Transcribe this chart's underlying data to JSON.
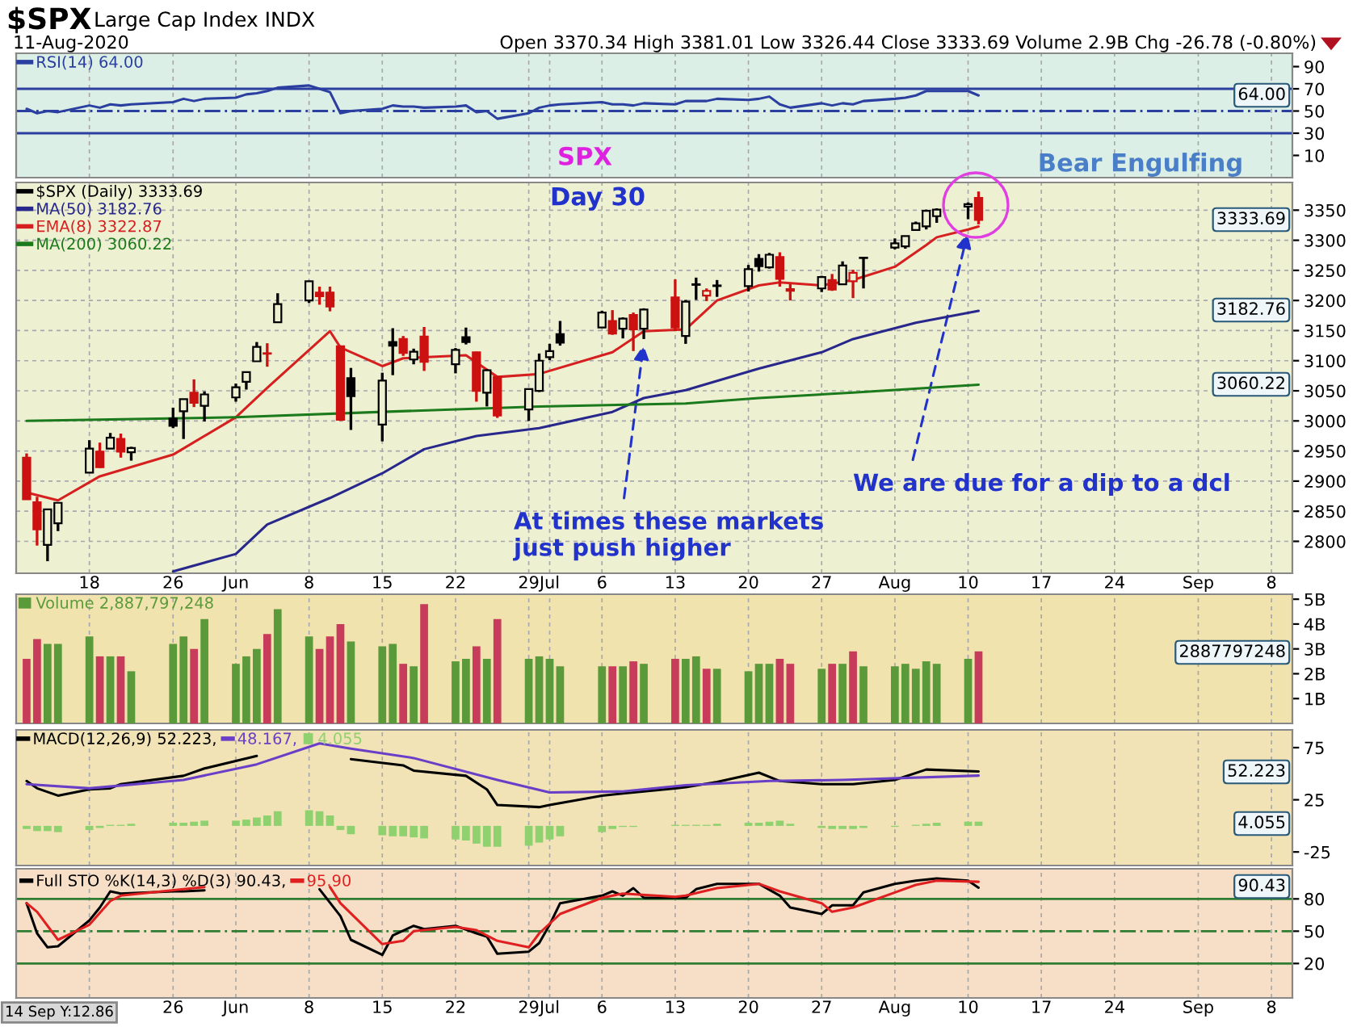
{
  "chart_data": [
    {
      "type": "line",
      "title": "$SPX",
      "subtitle": "Large Cap Index INDX",
      "annotations": [
        "11-Aug-2020",
        "Open 3370.34 High 3381.01 Low 3326.44 Close 3333.69 Volume 2.9B Chg -26.78 (-0.80%)",
        "64.00"
      ],
      "x": [
        "2020-05-12",
        "2020-05-13",
        "2020-05-14",
        "2020-05-15",
        "2020-05-18",
        "2020-05-19",
        "2020-05-20",
        "2020-05-21",
        "2020-05-22",
        "2020-05-26",
        "2020-05-27",
        "2020-05-28",
        "2020-05-29",
        "2020-06-01",
        "2020-06-02",
        "2020-06-03",
        "2020-06-04",
        "2020-06-05",
        "2020-06-08",
        "2020-06-09",
        "2020-06-10",
        "2020-06-11",
        "2020-06-12",
        "2020-06-15",
        "2020-06-16",
        "2020-06-17",
        "2020-06-18",
        "2020-06-19",
        "2020-06-22",
        "2020-06-23",
        "2020-06-24",
        "2020-06-25",
        "2020-06-26",
        "2020-06-29",
        "2020-06-30",
        "2020-07-01",
        "2020-07-02",
        "2020-07-06",
        "2020-07-07",
        "2020-07-08",
        "2020-07-09",
        "2020-07-10",
        "2020-07-13",
        "2020-07-14",
        "2020-07-15",
        "2020-07-16",
        "2020-07-17",
        "2020-07-20",
        "2020-07-21",
        "2020-07-22",
        "2020-07-23",
        "2020-07-24",
        "2020-07-27",
        "2020-07-28",
        "2020-07-29",
        "2020-07-30",
        "2020-07-31",
        "2020-08-03",
        "2020-08-04",
        "2020-08-05",
        "2020-08-06",
        "2020-08-07",
        "2020-08-10",
        "2020-08-11"
      ],
      "series": [
        {
          "name": "RSI(14) 64.00",
          "color": "#2a3fa0",
          "values": [
            52,
            48,
            50,
            49,
            55,
            53,
            56,
            55,
            56,
            58,
            61,
            59,
            61,
            62,
            65,
            66,
            68,
            71,
            73,
            70,
            67,
            48,
            50,
            52,
            55,
            54,
            54,
            53,
            54,
            55,
            49,
            50,
            43,
            48,
            53,
            55,
            56,
            58,
            56,
            56,
            55,
            57,
            56,
            59,
            59,
            59,
            61,
            60,
            61,
            63,
            56,
            53,
            57,
            55,
            57,
            56,
            59,
            61,
            62,
            64,
            68,
            68,
            68,
            64
          ]
        }
      ],
      "xlim": [
        "2020-05-11",
        "2020-09-10"
      ],
      "xticks": [
        {
          "value": "2020-05-18",
          "label": null
        },
        {
          "value": "2020-05-26",
          "label": null
        },
        {
          "value": "2020-06-01",
          "label": null
        },
        {
          "value": "2020-06-08",
          "label": null
        },
        {
          "value": "2020-06-15",
          "label": null
        },
        {
          "value": "2020-06-22",
          "label": null
        },
        {
          "value": "2020-06-29",
          "label": null
        },
        {
          "value": "2020-07-01",
          "label": null
        },
        {
          "value": "2020-07-06",
          "label": null
        },
        {
          "value": "2020-07-13",
          "label": null
        },
        {
          "value": "2020-07-20",
          "label": null
        },
        {
          "value": "2020-07-27",
          "label": null
        },
        {
          "value": "2020-08-03",
          "label": null
        },
        {
          "value": "2020-08-10",
          "label": null
        },
        {
          "value": "2020-08-17",
          "label": null
        },
        {
          "value": "2020-08-24",
          "label": null
        },
        {
          "value": "2020-09-01",
          "label": null
        },
        {
          "value": "2020-09-08",
          "label": null
        }
      ],
      "ylim": [
        -10,
        102
      ],
      "yticks": [
        10,
        30,
        50,
        70,
        90
      ],
      "ref_lines": [
        {
          "axis": "y",
          "value": 70,
          "color": "#2a3fa0"
        },
        {
          "axis": "y",
          "value": 30,
          "color": "#2a3fa0"
        },
        {
          "axis": "y",
          "value": 50,
          "color": "#2a3fa0",
          "line_style": "dashed"
        }
      ],
      "grid": "x",
      "legend": "top left",
      "tick_labels": "y"
    },
    {
      "type": "candlestick",
      "annotations": [
        "SPX",
        "Day 30",
        "Bear Engulfing",
        {
          "text": "At times these markets\njust push higher",
          "x": "2020-07-10",
          "y": 3130
        },
        {
          "text": "We are due for a dip to a dcl",
          "x": "2020-08-10",
          "y": 3315
        },
        "3333.69",
        "3182.76",
        "3060.22"
      ],
      "x": [
        "2020-05-12",
        "2020-05-13",
        "2020-05-14",
        "2020-05-15",
        "2020-05-18",
        "2020-05-19",
        "2020-05-20",
        "2020-05-21",
        "2020-05-22",
        "2020-05-26",
        "2020-05-27",
        "2020-05-28",
        "2020-05-29",
        "2020-06-01",
        "2020-06-02",
        "2020-06-03",
        "2020-06-04",
        "2020-06-05",
        "2020-06-08",
        "2020-06-09",
        "2020-06-10",
        "2020-06-11",
        "2020-06-12",
        "2020-06-15",
        "2020-06-16",
        "2020-06-17",
        "2020-06-18",
        "2020-06-19",
        "2020-06-22",
        "2020-06-23",
        "2020-06-24",
        "2020-06-25",
        "2020-06-26",
        "2020-06-29",
        "2020-06-30",
        "2020-07-01",
        "2020-07-02",
        "2020-07-06",
        "2020-07-07",
        "2020-07-08",
        "2020-07-09",
        "2020-07-10",
        "2020-07-13",
        "2020-07-14",
        "2020-07-15",
        "2020-07-16",
        "2020-07-17",
        "2020-07-20",
        "2020-07-21",
        "2020-07-22",
        "2020-07-23",
        "2020-07-24",
        "2020-07-27",
        "2020-07-28",
        "2020-07-29",
        "2020-07-30",
        "2020-07-31",
        "2020-08-03",
        "2020-08-04",
        "2020-08-05",
        "2020-08-06",
        "2020-08-07",
        "2020-08-10",
        "2020-08-11"
      ],
      "series": [
        {
          "name": "$SPX (Daily) 3333.69",
          "color": "#000000",
          "colors": [
            "#cc1111",
            "#cc1111",
            "#000000",
            "#000000",
            "#000000",
            "#cc1111",
            "#000000",
            "#cc1111",
            "#000000",
            "#000000",
            "#000000",
            "#cc1111",
            "#000000",
            "#000000",
            "#000000",
            "#000000",
            "#cc1111",
            "#000000",
            "#000000",
            "#cc1111",
            "#cc1111",
            "#cc1111",
            "#000000",
            "#000000",
            "#000000",
            "#cc1111",
            "#000000",
            "#cc1111",
            "#000000",
            "#000000",
            "#cc1111",
            "#000000",
            "#cc1111",
            "#000000",
            "#000000",
            "#000000",
            "#000000",
            "#000000",
            "#cc1111",
            "#000000",
            "#cc1111",
            "#000000",
            "#cc1111",
            "#000000",
            "#000000",
            "#cc1111",
            "#000000",
            "#000000",
            "#000000",
            "#000000",
            "#cc1111",
            "#cc1111",
            "#000000",
            "#cc1111",
            "#000000",
            "#cc1111",
            "#000000",
            "#000000",
            "#000000",
            "#000000",
            "#000000",
            "#000000",
            "#000000",
            "#cc1111"
          ],
          "ohlc": [
            [
              2939,
              2946,
              2870,
              2870
            ],
            [
              2865,
              2874,
              2793,
              2820
            ],
            [
              2794,
              2853,
              2767,
              2853
            ],
            [
              2830,
              2865,
              2817,
              2864
            ],
            [
              2914,
              2968,
              2914,
              2954
            ],
            [
              2949,
              2964,
              2922,
              2923
            ],
            [
              2954,
              2980,
              2954,
              2972
            ],
            [
              2970,
              2979,
              2939,
              2949
            ],
            [
              2948,
              2957,
              2934,
              2955
            ],
            [
              3004,
              3022,
              2988,
              2992
            ],
            [
              3016,
              3036,
              2970,
              3036
            ],
            [
              3047,
              3069,
              3023,
              3030
            ],
            [
              3025,
              3049,
              2999,
              3044
            ],
            [
              3039,
              3062,
              3032,
              3056
            ],
            [
              3065,
              3081,
              3052,
              3081
            ],
            [
              3099,
              3131,
              3099,
              3123
            ],
            [
              3111.6,
              3129,
              3090,
              3112.4
            ],
            [
              3164,
              3212,
              3164,
              3194
            ],
            [
              3200,
              3233,
              3196,
              3232
            ],
            [
              3213,
              3223,
              3193,
              3207
            ],
            [
              3213,
              3223,
              3182,
              3190
            ],
            [
              3124,
              3124,
              3000,
              3002
            ],
            [
              3071,
              3088,
              2985,
              3041
            ],
            [
              2994,
              3080,
              2966,
              3067
            ],
            [
              3131,
              3154,
              3076,
              3125
            ],
            [
              3136,
              3141,
              3108,
              3113
            ],
            [
              3102,
              3120,
              3094,
              3115
            ],
            [
              3140,
              3156,
              3083,
              3098
            ],
            [
              3094,
              3121,
              3079,
              3118
            ],
            [
              3139,
              3155,
              3127,
              3131
            ],
            [
              3114,
              3115,
              3032,
              3050
            ],
            [
              3047,
              3086,
              3024,
              3084
            ],
            [
              3073,
              3074,
              3005,
              3009
            ],
            [
              3019,
              3054,
              3000,
              3053
            ],
            [
              3050,
              3112,
              3048,
              3100
            ],
            [
              3106,
              3128,
              3101,
              3116
            ],
            [
              3144,
              3166,
              3125,
              3130
            ],
            [
              3155,
              3183,
              3155,
              3180
            ],
            [
              3166,
              3184,
              3143,
              3145
            ],
            [
              3153,
              3172,
              3137,
              3170
            ],
            [
              3176,
              3180,
              3116,
              3152
            ],
            [
              3153,
              3187,
              3136,
              3185
            ],
            [
              3205,
              3235,
              3149,
              3155
            ],
            [
              3141,
              3201,
              3128,
              3198
            ],
            [
              3226,
              3238,
              3201,
              3227
            ],
            [
              3208,
              3220,
              3199,
              3216
            ],
            [
              3224,
              3234,
              3206,
              3225
            ],
            [
              3224,
              3259,
              3215,
              3252
            ],
            [
              3269,
              3277,
              3248,
              3257
            ],
            [
              3255,
              3279,
              3253,
              3276
            ],
            [
              3272,
              3280,
              3223,
              3236
            ],
            [
              3219,
              3227,
              3200,
              3216
            ],
            [
              3220,
              3241,
              3214,
              3239
            ],
            [
              3234,
              3244,
              3216,
              3218
            ],
            [
              3227,
              3265,
              3227,
              3258
            ],
            [
              3232,
              3251,
              3204,
              3246
            ],
            [
              3270.5,
              3272,
              3220,
              3271.1
            ],
            [
              3288,
              3303,
              3285,
              3295
            ],
            [
              3290,
              3307,
              3286,
              3307
            ],
            [
              3317,
              3331,
              3317,
              3328
            ],
            [
              3323,
              3351,
              3318,
              3349
            ],
            [
              3340,
              3353,
              3329,
              3351
            ],
            [
              3356,
              3363,
              3335,
              3360
            ],
            [
              3370.34,
              3381.01,
              3326.44,
              3333.69
            ]
          ]
        },
        {
          "type": "line",
          "name": "MA(50) 3182.76",
          "color": "#28288c",
          "x": [
            "2020-05-26",
            "2020-06-01",
            "2020-06-04",
            "2020-06-10",
            "2020-06-15",
            "2020-06-19",
            "2020-06-24",
            "2020-06-30",
            "2020-07-07",
            "2020-07-10",
            "2020-07-14",
            "2020-07-21",
            "2020-07-27",
            "2020-07-30",
            "2020-08-05",
            "2020-08-11"
          ],
          "values": [
            2750,
            2779,
            2828,
            2872,
            2913,
            2953,
            2975,
            2988,
            3015,
            3038,
            3051,
            3087,
            3114,
            3136,
            3163,
            3182.76
          ]
        },
        {
          "type": "line",
          "name": "EMA(8) 3322.87",
          "color": "#d62020",
          "x": [
            "2020-05-12",
            "2020-05-15",
            "2020-05-19",
            "2020-05-26",
            "2020-06-01",
            "2020-06-04",
            "2020-06-10",
            "2020-06-11",
            "2020-06-15",
            "2020-06-17",
            "2020-06-23",
            "2020-06-26",
            "2020-06-30",
            "2020-07-07",
            "2020-07-10",
            "2020-07-14",
            "2020-07-17",
            "2020-07-21",
            "2020-07-23",
            "2020-07-27",
            "2020-07-30",
            "2020-08-03",
            "2020-08-06",
            "2020-08-07",
            "2020-08-10",
            "2020-08-11"
          ],
          "values": [
            2881,
            2868,
            2908,
            2944,
            3006,
            3055,
            3149,
            3122,
            3091,
            3104,
            3109,
            3073,
            3078,
            3114,
            3149,
            3152,
            3200,
            3225,
            3230,
            3225,
            3234,
            3256,
            3292,
            3305,
            3318,
            3322.87
          ]
        },
        {
          "type": "line",
          "name": "MA(200) 3060.22",
          "color": "#1b7a1b",
          "x": [
            "2020-05-12",
            "2020-06-01",
            "2020-06-15",
            "2020-06-30",
            "2020-07-14",
            "2020-07-21",
            "2020-07-30",
            "2020-08-11"
          ],
          "values": [
            3000,
            3006,
            3015,
            3024,
            3029,
            3038,
            3047,
            3060.22
          ]
        }
      ],
      "xlim": [
        "2020-05-11",
        "2020-09-10"
      ],
      "xticks": [
        {
          "value": "2020-05-18",
          "label": "18"
        },
        {
          "value": "2020-05-26",
          "label": "26"
        },
        {
          "value": "2020-06-01",
          "label": "Jun"
        },
        {
          "value": "2020-06-08",
          "label": "8"
        },
        {
          "value": "2020-06-15",
          "label": "15"
        },
        {
          "value": "2020-06-22",
          "label": "22"
        },
        {
          "value": "2020-06-29",
          "label": "29"
        },
        {
          "value": "2020-07-01",
          "label": "Jul"
        },
        {
          "value": "2020-07-06",
          "label": "6"
        },
        {
          "value": "2020-07-13",
          "label": "13"
        },
        {
          "value": "2020-07-20",
          "label": "20"
        },
        {
          "value": "2020-07-27",
          "label": "27"
        },
        {
          "value": "2020-08-03",
          "label": "Aug"
        },
        {
          "value": "2020-08-10",
          "label": "10"
        },
        {
          "value": "2020-08-17",
          "label": "17"
        },
        {
          "value": "2020-08-24",
          "label": "24"
        },
        {
          "value": "2020-09-01",
          "label": "Sep"
        },
        {
          "value": "2020-09-08",
          "label": "8"
        }
      ],
      "ylim": [
        2747,
        3396
      ],
      "yticks": [
        2800,
        2850,
        2900,
        2950,
        3000,
        3050,
        3100,
        3150,
        3200,
        3250,
        3300,
        3350
      ],
      "grid": true,
      "legend": "top left"
    },
    {
      "type": "bar",
      "annotations": [
        "2887797248"
      ],
      "x": [
        "2020-05-12",
        "2020-05-13",
        "2020-05-14",
        "2020-05-15",
        "2020-05-18",
        "2020-05-19",
        "2020-05-20",
        "2020-05-21",
        "2020-05-22",
        "2020-05-26",
        "2020-05-27",
        "2020-05-28",
        "2020-05-29",
        "2020-06-01",
        "2020-06-02",
        "2020-06-03",
        "2020-06-04",
        "2020-06-05",
        "2020-06-08",
        "2020-06-09",
        "2020-06-10",
        "2020-06-11",
        "2020-06-12",
        "2020-06-15",
        "2020-06-16",
        "2020-06-17",
        "2020-06-18",
        "2020-06-19",
        "2020-06-22",
        "2020-06-23",
        "2020-06-24",
        "2020-06-25",
        "2020-06-26",
        "2020-06-29",
        "2020-06-30",
        "2020-07-01",
        "2020-07-02",
        "2020-07-06",
        "2020-07-07",
        "2020-07-08",
        "2020-07-09",
        "2020-07-10",
        "2020-07-13",
        "2020-07-14",
        "2020-07-15",
        "2020-07-16",
        "2020-07-17",
        "2020-07-20",
        "2020-07-21",
        "2020-07-22",
        "2020-07-23",
        "2020-07-24",
        "2020-07-27",
        "2020-07-28",
        "2020-07-29",
        "2020-07-30",
        "2020-07-31",
        "2020-08-03",
        "2020-08-04",
        "2020-08-05",
        "2020-08-06",
        "2020-08-07",
        "2020-08-10",
        "2020-08-11"
      ],
      "series": [
        {
          "name": "Volume 2,887,797,248",
          "color": "#5b9a3b",
          "colors": [
            "#c63c5a",
            "#c63c5a",
            "#5b9a3b",
            "#5b9a3b",
            "#5b9a3b",
            "#c63c5a",
            "#5b9a3b",
            "#c63c5a",
            "#5b9a3b",
            "#5b9a3b",
            "#5b9a3b",
            "#c63c5a",
            "#5b9a3b",
            "#5b9a3b",
            "#5b9a3b",
            "#5b9a3b",
            "#c63c5a",
            "#5b9a3b",
            "#5b9a3b",
            "#c63c5a",
            "#c63c5a",
            "#c63c5a",
            "#5b9a3b",
            "#5b9a3b",
            "#5b9a3b",
            "#c63c5a",
            "#5b9a3b",
            "#c63c5a",
            "#5b9a3b",
            "#5b9a3b",
            "#c63c5a",
            "#5b9a3b",
            "#c63c5a",
            "#5b9a3b",
            "#5b9a3b",
            "#5b9a3b",
            "#5b9a3b",
            "#5b9a3b",
            "#c63c5a",
            "#5b9a3b",
            "#c63c5a",
            "#5b9a3b",
            "#c63c5a",
            "#5b9a3b",
            "#5b9a3b",
            "#c63c5a",
            "#5b9a3b",
            "#5b9a3b",
            "#5b9a3b",
            "#5b9a3b",
            "#c63c5a",
            "#c63c5a",
            "#5b9a3b",
            "#c63c5a",
            "#5b9a3b",
            "#c63c5a",
            "#5b9a3b",
            "#5b9a3b",
            "#5b9a3b",
            "#5b9a3b",
            "#5b9a3b",
            "#5b9a3b",
            "#5b9a3b",
            "#c63c5a"
          ],
          "values": [
            2.6,
            3.4,
            3.2,
            3.2,
            3.5,
            2.7,
            2.7,
            2.7,
            2.1,
            3.2,
            3.5,
            3.0,
            4.2,
            2.4,
            2.7,
            3.0,
            3.6,
            4.6,
            3.5,
            3.0,
            3.5,
            4.0,
            3.3,
            3.1,
            3.2,
            2.4,
            2.3,
            4.8,
            2.5,
            2.6,
            3.1,
            2.6,
            4.2,
            2.6,
            2.7,
            2.6,
            2.3,
            2.3,
            2.3,
            2.3,
            2.5,
            2.4,
            2.6,
            2.6,
            2.7,
            2.2,
            2.2,
            2.1,
            2.4,
            2.4,
            2.6,
            2.4,
            2.2,
            2.4,
            2.4,
            2.9,
            2.3,
            2.3,
            2.4,
            2.2,
            2.5,
            2.4,
            2.6,
            2.9
          ]
        }
      ],
      "xlim": [
        "2020-05-11",
        "2020-09-10"
      ],
      "xticks": [
        {
          "value": "2020-05-18",
          "label": null
        },
        {
          "value": "2020-05-26",
          "label": null
        },
        {
          "value": "2020-06-01",
          "label": null
        },
        {
          "value": "2020-06-08",
          "label": null
        },
        {
          "value": "2020-06-15",
          "label": null
        },
        {
          "value": "2020-06-22",
          "label": null
        },
        {
          "value": "2020-06-29",
          "label": null
        },
        {
          "value": "2020-07-01",
          "label": null
        },
        {
          "value": "2020-07-06",
          "label": null
        },
        {
          "value": "2020-07-13",
          "label": null
        },
        {
          "value": "2020-07-20",
          "label": null
        },
        {
          "value": "2020-07-27",
          "label": null
        },
        {
          "value": "2020-08-03",
          "label": null
        },
        {
          "value": "2020-08-10",
          "label": null
        },
        {
          "value": "2020-08-17",
          "label": null
        },
        {
          "value": "2020-08-24",
          "label": null
        },
        {
          "value": "2020-09-01",
          "label": null
        },
        {
          "value": "2020-09-08",
          "label": null
        }
      ],
      "ylim": [
        0,
        5.2
      ],
      "yticks": [
        {
          "value": 1,
          "label": "1B"
        },
        {
          "value": 2,
          "label": "2B"
        },
        {
          "value": 3,
          "label": "3B"
        },
        {
          "value": 4,
          "label": "4B"
        },
        {
          "value": 5,
          "label": "5B"
        }
      ],
      "grid": "x",
      "legend": "top left",
      "tick_labels": "y"
    },
    {
      "type": "line",
      "annotations": [
        "52.223",
        "4.055"
      ],
      "x": [
        "2020-05-12",
        "2020-05-13",
        "2020-05-14",
        "2020-05-15",
        "2020-05-18",
        "2020-05-19",
        "2020-05-20",
        "2020-05-21",
        "2020-05-22",
        "2020-05-26",
        "2020-05-27",
        "2020-05-28",
        "2020-05-29",
        "2020-06-01",
        "2020-06-02",
        "2020-06-03",
        "2020-06-04",
        "2020-06-05",
        "2020-06-08",
        "2020-06-09",
        "2020-06-10",
        "2020-06-11",
        "2020-06-12",
        "2020-06-15",
        "2020-06-16",
        "2020-06-17",
        "2020-06-18",
        "2020-06-19",
        "2020-06-22",
        "2020-06-23",
        "2020-06-24",
        "2020-06-25",
        "2020-06-26",
        "2020-06-29",
        "2020-06-30",
        "2020-07-01",
        "2020-07-02",
        "2020-07-06",
        "2020-07-07",
        "2020-07-08",
        "2020-07-09",
        "2020-07-10",
        "2020-07-13",
        "2020-07-14",
        "2020-07-15",
        "2020-07-16",
        "2020-07-17",
        "2020-07-20",
        "2020-07-21",
        "2020-07-22",
        "2020-07-23",
        "2020-07-24",
        "2020-07-27",
        "2020-07-28",
        "2020-07-29",
        "2020-07-30",
        "2020-07-31",
        "2020-08-03",
        "2020-08-04",
        "2020-08-05",
        "2020-08-06",
        "2020-08-07",
        "2020-08-10",
        "2020-08-11"
      ],
      "series": [
        {
          "name": "MACD(12,26,9) 52.223,",
          "color": "#000000",
          "x": [
            "2020-05-12",
            "2020-05-13",
            "2020-05-15",
            "2020-05-18",
            "2020-05-20",
            "2020-05-21",
            "2020-05-27",
            "2020-05-29",
            "2020-06-03",
            "2020-06-09",
            "2020-06-12",
            "2020-06-17",
            "2020-06-18",
            "2020-06-23",
            "2020-06-25",
            "2020-06-26",
            "2020-06-30",
            "2020-07-01",
            "2020-07-06",
            "2020-07-08",
            "2020-07-13",
            "2020-07-14",
            "2020-07-17",
            "2020-07-21",
            "2020-07-23",
            "2020-07-27",
            "2020-07-30",
            "2020-08-03",
            "2020-08-06",
            "2020-08-11"
          ],
          "values": [
            43,
            36,
            29,
            35,
            36,
            40,
            48,
            55,
            67,
            null,
            64,
            58,
            53,
            48,
            35,
            20,
            18,
            20,
            29,
            31,
            36,
            37,
            42,
            51,
            43,
            40,
            40,
            44,
            54,
            52.223
          ]
        },
        {
          "name": "48.167,",
          "color": "#6a3fc8",
          "x": [
            "2020-05-12",
            "2020-05-18",
            "2020-05-27",
            "2020-06-03",
            "2020-06-09",
            "2020-06-12",
            "2020-06-18",
            "2020-06-26",
            "2020-07-01",
            "2020-07-08",
            "2020-07-14",
            "2020-07-22",
            "2020-07-29",
            "2020-08-11"
          ],
          "values": [
            40,
            36,
            44,
            59,
            79,
            74,
            65,
            44,
            32,
            33,
            39,
            43,
            44,
            48.167
          ]
        },
        {
          "type": "bar",
          "name": "4.055",
          "color": "#8fd16f",
          "values": [
            -3,
            -5,
            -5,
            -6,
            -4,
            -2,
            1,
            1,
            2,
            3,
            3,
            4,
            5,
            5,
            6,
            8,
            10,
            14,
            15,
            14,
            10,
            -4,
            -8,
            -9,
            -10,
            -10,
            -11,
            -12,
            -13,
            -14,
            -17,
            -20,
            -20,
            -19,
            -16,
            -13,
            -10,
            -6,
            -3,
            -1,
            -1,
            0,
            1,
            1,
            1,
            1,
            2,
            3,
            3,
            4,
            5,
            2,
            -2,
            -3,
            -3,
            -3,
            -2,
            -1,
            0,
            1,
            2,
            3,
            4,
            4.055
          ]
        }
      ],
      "xlim": [
        "2020-05-11",
        "2020-09-10"
      ],
      "xticks": [
        {
          "value": "2020-05-18",
          "label": null
        },
        {
          "value": "2020-05-26",
          "label": null
        },
        {
          "value": "2020-06-01",
          "label": null
        },
        {
          "value": "2020-06-08",
          "label": null
        },
        {
          "value": "2020-06-15",
          "label": null
        },
        {
          "value": "2020-06-22",
          "label": null
        },
        {
          "value": "2020-06-29",
          "label": null
        },
        {
          "value": "2020-07-01",
          "label": null
        },
        {
          "value": "2020-07-06",
          "label": null
        },
        {
          "value": "2020-07-13",
          "label": null
        },
        {
          "value": "2020-07-20",
          "label": null
        },
        {
          "value": "2020-07-27",
          "label": null
        },
        {
          "value": "2020-08-03",
          "label": null
        },
        {
          "value": "2020-08-10",
          "label": null
        },
        {
          "value": "2020-08-17",
          "label": null
        },
        {
          "value": "2020-08-24",
          "label": null
        },
        {
          "value": "2020-09-01",
          "label": null
        },
        {
          "value": "2020-09-08",
          "label": null
        }
      ],
      "ylim": [
        -38,
        92
      ],
      "yticks": [
        -25,
        25,
        75
      ],
      "grid": "x",
      "legend": "top left",
      "tick_labels": "y"
    },
    {
      "type": "line",
      "annotations": [
        "14 Sep Y:12.86",
        "90.43"
      ],
      "series": [
        {
          "name": "Full STO %K(14,3) %D(3) 90.43,",
          "color": "#000000",
          "x": [
            "2020-05-12",
            "2020-05-13",
            "2020-05-14",
            "2020-05-15",
            "2020-05-18",
            "2020-05-19",
            "2020-05-20",
            "2020-05-21",
            "2020-05-26",
            "2020-05-27",
            "2020-05-29",
            "2020-06-03",
            "2020-06-09",
            "2020-06-11",
            "2020-06-12",
            "2020-06-15",
            "2020-06-16",
            "2020-06-18",
            "2020-06-19",
            "2020-06-22",
            "2020-06-24",
            "2020-06-25",
            "2020-06-26",
            "2020-06-29",
            "2020-06-30",
            "2020-07-01",
            "2020-07-02",
            "2020-07-06",
            "2020-07-07",
            "2020-07-08",
            "2020-07-09",
            "2020-07-10",
            "2020-07-14",
            "2020-07-15",
            "2020-07-17",
            "2020-07-21",
            "2020-07-23",
            "2020-07-24",
            "2020-07-27",
            "2020-07-28",
            "2020-07-30",
            "2020-07-31",
            "2020-08-03",
            "2020-08-05",
            "2020-08-07",
            "2020-08-10",
            "2020-08-11"
          ],
          "values": [
            76,
            48,
            35,
            36,
            60,
            72,
            87,
            85,
            87,
            87,
            88,
            null,
            89,
            64,
            42,
            28,
            46,
            55,
            52,
            55,
            48,
            45,
            29,
            31,
            39,
            56,
            76,
            83,
            87,
            83,
            90,
            81,
            81,
            89,
            94,
            94,
            83,
            72,
            66,
            74,
            74,
            86,
            94,
            97,
            99,
            97,
            90.43
          ]
        },
        {
          "name": "95.90",
          "color": "#e02020",
          "x": [
            "2020-05-12",
            "2020-05-13",
            "2020-05-15",
            "2020-05-18",
            "2020-05-20",
            "2020-05-21",
            "2020-05-27",
            "2020-05-29",
            "2020-06-03",
            "2020-06-10",
            "2020-06-11",
            "2020-06-15",
            "2020-06-17",
            "2020-06-18",
            "2020-06-22",
            "2020-06-24",
            "2020-06-26",
            "2020-06-29",
            "2020-06-30",
            "2020-07-02",
            "2020-07-06",
            "2020-07-08",
            "2020-07-13",
            "2020-07-14",
            "2020-07-17",
            "2020-07-21",
            "2020-07-23",
            "2020-07-27",
            "2020-07-28",
            "2020-07-30",
            "2020-08-03",
            "2020-08-05",
            "2020-08-07",
            "2020-08-11"
          ],
          "values": [
            76,
            68,
            42,
            56,
            78,
            83,
            89,
            91,
            null,
            91,
            76,
            38,
            41,
            50,
            54,
            51,
            41,
            35,
            48,
            66,
            81,
            85,
            82,
            83,
            90,
            94,
            87,
            76,
            68,
            72,
            86,
            93,
            97,
            95.9
          ]
        }
      ],
      "xlim": [
        "2020-05-11",
        "2020-09-10"
      ],
      "xticks": [
        {
          "value": "2020-05-18",
          "label": null
        },
        {
          "value": "2020-05-26",
          "label": "26"
        },
        {
          "value": "2020-06-01",
          "label": "Jun"
        },
        {
          "value": "2020-06-08",
          "label": "8"
        },
        {
          "value": "2020-06-15",
          "label": "15"
        },
        {
          "value": "2020-06-22",
          "label": "22"
        },
        {
          "value": "2020-06-29",
          "label": "29"
        },
        {
          "value": "2020-07-01",
          "label": "Jul"
        },
        {
          "value": "2020-07-06",
          "label": "6"
        },
        {
          "value": "2020-07-13",
          "label": "13"
        },
        {
          "value": "2020-07-20",
          "label": "20"
        },
        {
          "value": "2020-07-27",
          "label": "27"
        },
        {
          "value": "2020-08-03",
          "label": "Aug"
        },
        {
          "value": "2020-08-10",
          "label": "10"
        },
        {
          "value": "2020-08-17",
          "label": "17"
        },
        {
          "value": "2020-08-24",
          "label": "24"
        },
        {
          "value": "2020-09-01",
          "label": "Sep"
        },
        {
          "value": "2020-09-08",
          "label": "8"
        }
      ],
      "ylim": [
        -12,
        108
      ],
      "yticks": [
        20,
        50,
        80
      ],
      "ref_lines": [
        {
          "axis": "y",
          "value": 80,
          "color": "#2e7d32"
        },
        {
          "axis": "y",
          "value": 20,
          "color": "#2e7d32"
        },
        {
          "axis": "y",
          "value": 50,
          "color": "#2e7d32",
          "line_style": "dashed"
        }
      ],
      "grid": "x",
      "legend": "top left"
    }
  ]
}
